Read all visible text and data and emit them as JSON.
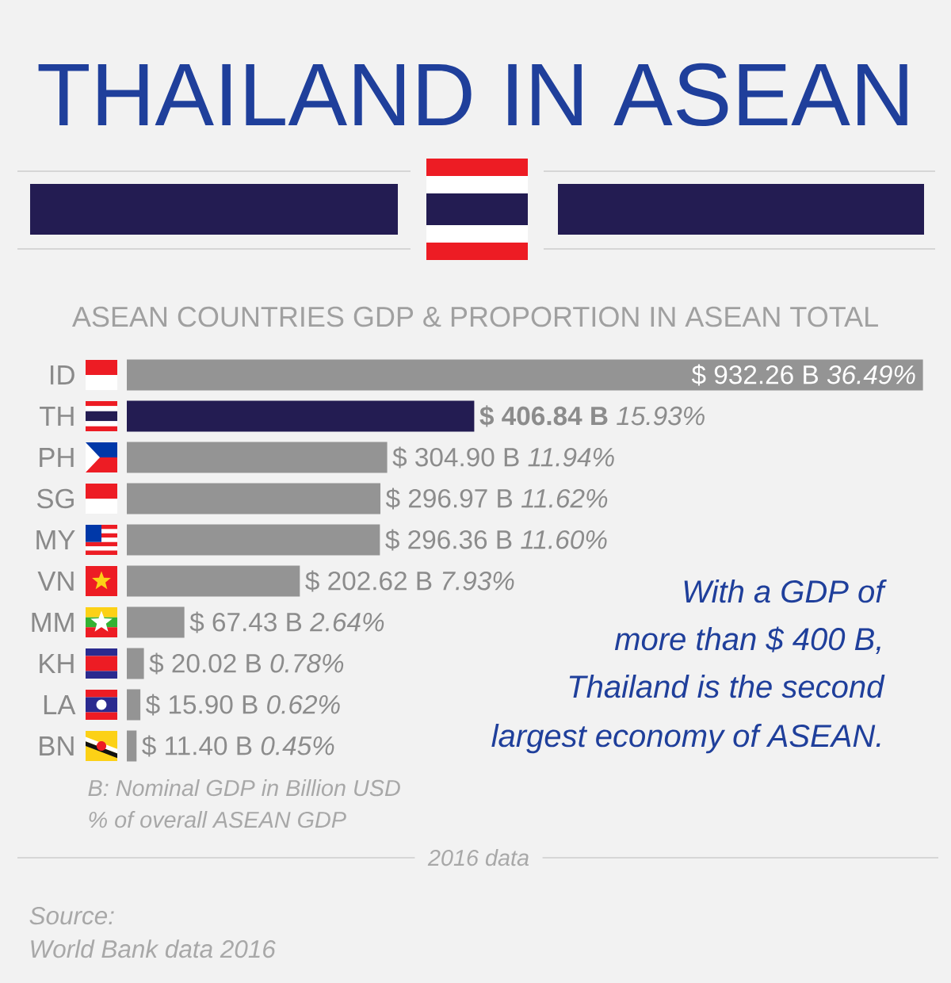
{
  "chart_data": {
    "type": "bar",
    "orientation": "horizontal",
    "title": "THAILAND IN ASEAN",
    "subtitle": "ASEAN COUNTRIES GDP & PROPORTION IN ASEAN TOTAL",
    "categories": [
      "ID",
      "TH",
      "PH",
      "SG",
      "MY",
      "VN",
      "MM",
      "KH",
      "LA",
      "BN"
    ],
    "values": [
      932.26,
      406.84,
      304.9,
      296.97,
      296.36,
      202.62,
      67.43,
      20.02,
      15.9,
      11.4
    ],
    "colors": [
      "#949494",
      "#231c52",
      "#949494",
      "#949494",
      "#949494",
      "#949494",
      "#949494",
      "#949494",
      "#949494",
      "#949494"
    ],
    "value_labels": [
      "$ 932.26 B *36.49%*",
      "**$ 406.84 B** *15.93%*",
      "$ 304.90 B *11.94%*",
      "$ 296.97 B *11.62%*",
      "$ 296.36 B *11.60%*",
      "$ 202.62 B *7.93%*",
      "$ 67.43 B *2.64%*",
      "$ 20.02 B *0.78%*",
      "$ 15.90 B *0.62%*",
      "$ 11.40 B *0.45%*"
    ],
    "annotations": [
      "With a GDP of",
      "more than $ 400 B,",
      "Thailand is the second",
      "largest economy of ASEAN.",
      "B: Nominal GDP in Billion USD",
      "% of overall ASEAN GDP",
      "2016 data",
      "Source:",
      "World Bank data 2016"
    ]
  }
}
